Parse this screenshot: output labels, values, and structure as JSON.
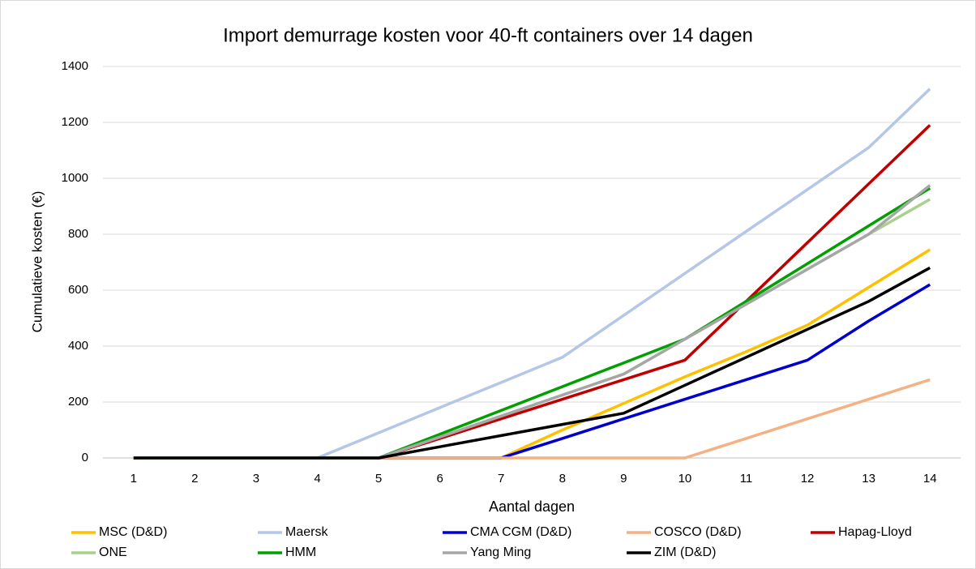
{
  "chart_data": {
    "type": "line",
    "title": "Import demurrage kosten voor 40-ft containers over 14 dagen",
    "x_label": "Aantal dagen",
    "y_label": "Cumulatieve kosten (€)",
    "categories": [
      "1",
      "2",
      "3",
      "4",
      "5",
      "6",
      "7",
      "8",
      "9",
      "10",
      "11",
      "12",
      "13",
      "14"
    ],
    "ylim": [
      0,
      1400
    ],
    "yticks": [
      0,
      200,
      400,
      600,
      800,
      1000,
      1200,
      1400
    ],
    "grid": true,
    "legend": "bottom",
    "series": [
      {
        "name": "MSC (D&D)",
        "color": "#ffc000",
        "values": [
          0,
          0,
          0,
          0,
          0,
          0,
          0,
          100,
          195,
          290,
          380,
          475,
          610,
          745
        ]
      },
      {
        "name": "Maersk",
        "color": "#b4c7e7",
        "values": [
          0,
          0,
          0,
          0,
          90,
          180,
          270,
          360,
          510,
          660,
          810,
          960,
          1110,
          1320
        ]
      },
      {
        "name": "CMA CGM (D&D)",
        "color": "#0000cc",
        "values": [
          0,
          0,
          0,
          0,
          0,
          0,
          0,
          70,
          140,
          210,
          280,
          350,
          490,
          620
        ]
      },
      {
        "name": "COSCO (D&D)",
        "color": "#f4b183",
        "values": [
          0,
          0,
          0,
          0,
          0,
          0,
          0,
          0,
          0,
          0,
          70,
          140,
          210,
          280
        ]
      },
      {
        "name": "Hapag-Lloyd",
        "color": "#c00000",
        "values": [
          0,
          0,
          0,
          0,
          0,
          70,
          140,
          210,
          280,
          350,
          560,
          770,
          980,
          1190
        ]
      },
      {
        "name": "ONE",
        "color": "#a9d18e",
        "values": [
          0,
          0,
          0,
          0,
          0,
          75,
          150,
          225,
          300,
          425,
          550,
          675,
          800,
          925
        ]
      },
      {
        "name": "HMM",
        "color": "#00a000",
        "values": [
          0,
          0,
          0,
          0,
          0,
          85,
          170,
          255,
          340,
          425,
          560,
          695,
          830,
          965
        ]
      },
      {
        "name": "Yang Ming",
        "color": "#a6a6a6",
        "values": [
          0,
          0,
          0,
          0,
          0,
          75,
          150,
          225,
          300,
          425,
          550,
          675,
          800,
          975
        ]
      },
      {
        "name": "ZIM (D&D)",
        "color": "#000000",
        "values": [
          0,
          0,
          0,
          0,
          0,
          40,
          80,
          120,
          160,
          260,
          360,
          460,
          560,
          680
        ]
      }
    ]
  }
}
